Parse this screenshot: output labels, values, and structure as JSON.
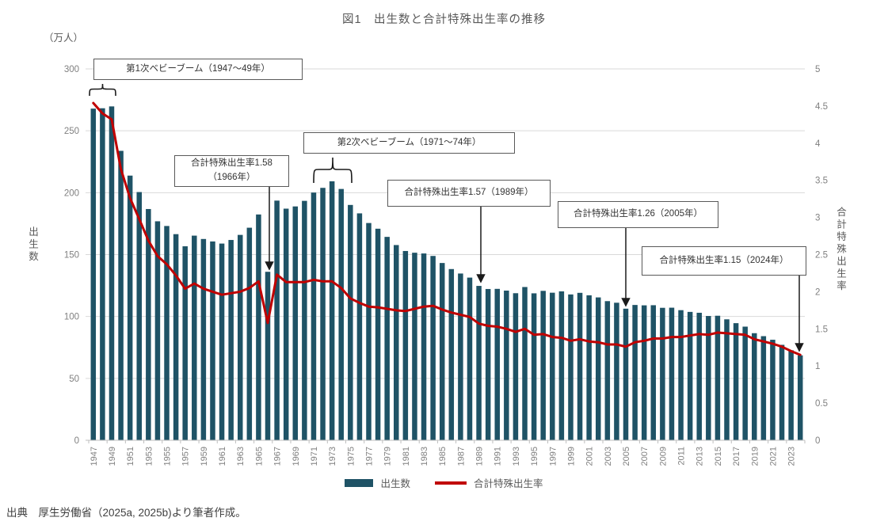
{
  "title": "図1　出生数と合計特殊出生率の推移",
  "unit_label": "（万人）",
  "left_axis_title": "出生数",
  "right_axis_title": "合計特殊出生率",
  "source": "出典　厚生労働省（2025a, 2025b)より筆者作成。",
  "legend": {
    "bars": "出生数",
    "line": "合計特殊出生率"
  },
  "annotations": {
    "boom1": "第1次ベビーブーム（1947～49年）",
    "boom2": "第2次ベビーブーム（1971～74年）",
    "tfr1966": "合計特殊出生率1.58\n（1966年）",
    "tfr1989": "合計特殊出生率1.57（1989年）",
    "tfr2005": "合計特殊出生率1.26（2005年）",
    "tfr2024": "合計特殊出生率1.15（2024年）"
  },
  "colors": {
    "bar": "#1f5366",
    "line": "#c00000",
    "grid": "#d9d9d9",
    "axis": "#bfbfbf",
    "tick_text": "#808080"
  },
  "chart_data": {
    "type": "bar",
    "note": "combination chart: bars (left axis, 万人) + line (right axis, rate)",
    "years": [
      1947,
      1948,
      1949,
      1950,
      1951,
      1952,
      1953,
      1954,
      1955,
      1956,
      1957,
      1958,
      1959,
      1960,
      1961,
      1962,
      1963,
      1964,
      1965,
      1966,
      1967,
      1968,
      1969,
      1970,
      1971,
      1972,
      1973,
      1974,
      1975,
      1976,
      1977,
      1978,
      1979,
      1980,
      1981,
      1982,
      1983,
      1984,
      1985,
      1986,
      1987,
      1988,
      1989,
      1990,
      1991,
      1992,
      1993,
      1994,
      1995,
      1996,
      1997,
      1998,
      1999,
      2000,
      2001,
      2002,
      2003,
      2004,
      2005,
      2006,
      2007,
      2008,
      2009,
      2010,
      2011,
      2012,
      2013,
      2014,
      2015,
      2016,
      2017,
      2018,
      2019,
      2020,
      2021,
      2022,
      2023,
      2024
    ],
    "series": [
      {
        "name": "出生数",
        "type": "bar",
        "axis": "left",
        "values": [
          267.9,
          268.2,
          269.7,
          233.8,
          213.8,
          200.5,
          186.8,
          176.9,
          173.1,
          166.5,
          156.7,
          165.3,
          162.6,
          160.6,
          158.9,
          161.8,
          165.9,
          171.7,
          182.4,
          136.1,
          193.6,
          187.1,
          188.9,
          193.4,
          200.1,
          203.9,
          209.2,
          203.0,
          190.1,
          183.3,
          175.5,
          170.9,
          164.3,
          157.7,
          152.9,
          151.5,
          150.9,
          148.9,
          143.2,
          138.3,
          134.7,
          131.4,
          124.7,
          122.2,
          122.3,
          120.9,
          118.8,
          123.8,
          118.7,
          120.7,
          119.2,
          120.3,
          117.8,
          119.1,
          117.1,
          115.4,
          112.4,
          111.1,
          106.3,
          109.3,
          109.0,
          109.1,
          107.0,
          107.1,
          105.1,
          103.7,
          103.0,
          100.4,
          100.6,
          97.7,
          94.6,
          91.8,
          86.5,
          84.1,
          81.2,
          77.1,
          72.7,
          68.6
        ]
      },
      {
        "name": "合計特殊出生率",
        "type": "line",
        "axis": "right",
        "values": [
          4.54,
          4.4,
          4.32,
          3.65,
          3.26,
          2.98,
          2.69,
          2.48,
          2.37,
          2.22,
          2.04,
          2.11,
          2.04,
          2.0,
          1.96,
          1.98,
          2.0,
          2.05,
          2.14,
          1.58,
          2.23,
          2.13,
          2.13,
          2.13,
          2.16,
          2.14,
          2.14,
          2.05,
          1.91,
          1.85,
          1.8,
          1.79,
          1.77,
          1.75,
          1.74,
          1.77,
          1.8,
          1.81,
          1.76,
          1.72,
          1.69,
          1.66,
          1.57,
          1.54,
          1.53,
          1.5,
          1.46,
          1.5,
          1.42,
          1.43,
          1.39,
          1.38,
          1.34,
          1.36,
          1.33,
          1.32,
          1.29,
          1.29,
          1.26,
          1.32,
          1.34,
          1.37,
          1.37,
          1.39,
          1.39,
          1.41,
          1.43,
          1.42,
          1.45,
          1.44,
          1.43,
          1.42,
          1.36,
          1.33,
          1.3,
          1.26,
          1.2,
          1.15
        ]
      }
    ],
    "left_axis": {
      "min": 0,
      "max": 300,
      "step": 50,
      "tick_labels": [
        "0",
        "50",
        "100",
        "150",
        "200",
        "250",
        "300"
      ]
    },
    "right_axis": {
      "min": 0,
      "max": 5,
      "step": 0.5,
      "tick_labels": [
        "0",
        "0.5",
        "1",
        "1.5",
        "2",
        "2.5",
        "3",
        "3.5",
        "4",
        "4.5",
        "5"
      ]
    },
    "x_tick_interval": 2,
    "grid": true,
    "legend_position": "bottom"
  }
}
